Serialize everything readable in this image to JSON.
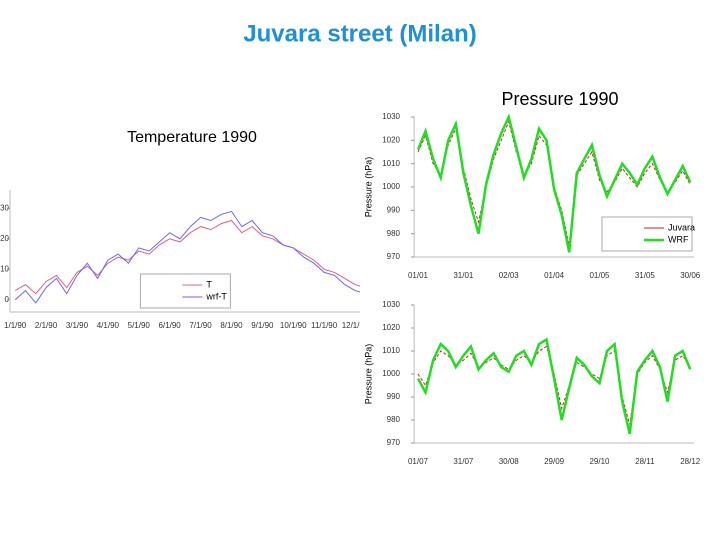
{
  "title": "Juvara street (Milan)",
  "chart_data": [
    {
      "type": "line",
      "title": "Temperature 1990",
      "legend": "lower center",
      "categories": [
        "1/1/90",
        null,
        null,
        "2/1/90",
        null,
        null,
        "3/1/90",
        null,
        null,
        "4/1/90",
        null,
        null,
        "5/1/90",
        null,
        null,
        "6/1/90",
        null,
        null,
        "7/1/90",
        null,
        null,
        "8/1/90",
        null,
        null,
        "9/1/90",
        null,
        null,
        "10/1/90",
        null,
        null,
        "11/1/90",
        null,
        null,
        "12/1/90",
        null,
        null
      ],
      "series": [
        {
          "name": "T",
          "color": "#e06080",
          "values": [
            3,
            5,
            2,
            6,
            8,
            4,
            9,
            11,
            8,
            12,
            14,
            13,
            16,
            15,
            18,
            20,
            19,
            22,
            24,
            23,
            25,
            26,
            22,
            24,
            21,
            20,
            18,
            17,
            15,
            13,
            10,
            9,
            7,
            5,
            4,
            2
          ]
        },
        {
          "name": "wrf-T",
          "color": "#6666ff",
          "values": [
            0,
            3,
            -1,
            4,
            7,
            2,
            8,
            12,
            7,
            13,
            15,
            12,
            17,
            16,
            19,
            22,
            20,
            24,
            27,
            26,
            28,
            29,
            24,
            26,
            22,
            21,
            18,
            17,
            14,
            12,
            9,
            8,
            5,
            3,
            2,
            0
          ]
        }
      ],
      "ylim": [
        -4,
        36
      ],
      "yticks": [
        0,
        10,
        20,
        30
      ]
    },
    {
      "type": "line",
      "title": "Pressure 1990",
      "ylabel": "Pressure (hPa)",
      "legend": "lower right",
      "categories": [
        "01/01",
        null,
        null,
        null,
        null,
        null,
        "31/01",
        null,
        null,
        null,
        null,
        null,
        "02/03",
        null,
        null,
        null,
        null,
        null,
        "01/04",
        null,
        null,
        null,
        null,
        null,
        "01/05",
        null,
        null,
        null,
        null,
        null,
        "31/05",
        null,
        null,
        null,
        null,
        null,
        "30/06"
      ],
      "series": [
        {
          "name": "Juvara",
          "color": "#cc2222",
          "values": [
            1015,
            1022,
            1010,
            1005,
            1018,
            1025,
            1008,
            995,
            985,
            1000,
            1012,
            1020,
            1028,
            1015,
            1005,
            1010,
            1022,
            1018,
            1000,
            990,
            975,
            1005,
            1010,
            1015,
            1003,
            998,
            1002,
            1008,
            1004,
            1000,
            1006,
            1010,
            1003,
            998,
            1002,
            1007,
            1001
          ]
        },
        {
          "name": "WRF",
          "color": "#22dd22",
          "values": [
            1016,
            1024,
            1012,
            1004,
            1020,
            1027,
            1006,
            992,
            980,
            1001,
            1014,
            1023,
            1030,
            1017,
            1004,
            1012,
            1025,
            1020,
            999,
            988,
            972,
            1006,
            1012,
            1018,
            1005,
            996,
            1003,
            1010,
            1006,
            1001,
            1008,
            1013,
            1004,
            997,
            1003,
            1009,
            1002
          ]
        }
      ],
      "ylim": [
        970,
        1030
      ],
      "yticks": [
        970,
        980,
        990,
        1000,
        1010,
        1020,
        1030
      ]
    },
    {
      "type": "line",
      "ylabel": "Pressure (hPa)",
      "categories": [
        "01/07",
        null,
        null,
        null,
        null,
        null,
        "31/07",
        null,
        null,
        null,
        null,
        null,
        "30/08",
        null,
        null,
        null,
        null,
        null,
        "29/09",
        null,
        null,
        null,
        null,
        null,
        "29/10",
        null,
        null,
        null,
        null,
        null,
        "28/11",
        null,
        null,
        null,
        null,
        null,
        "28/12"
      ],
      "series": [
        {
          "color": "#cc2222",
          "values": [
            1000,
            995,
            1005,
            1010,
            1008,
            1004,
            1006,
            1009,
            1003,
            1005,
            1007,
            1004,
            1002,
            1006,
            1008,
            1005,
            1010,
            1012,
            1000,
            985,
            995,
            1005,
            1003,
            1000,
            998,
            1008,
            1010,
            990,
            978,
            1000,
            1005,
            1008,
            1002,
            992,
            1006,
            1008,
            1003
          ]
        },
        {
          "color": "#22dd22",
          "values": [
            998,
            992,
            1006,
            1013,
            1010,
            1003,
            1008,
            1012,
            1002,
            1006,
            1009,
            1003,
            1001,
            1008,
            1010,
            1004,
            1013,
            1015,
            998,
            980,
            994,
            1007,
            1004,
            999,
            996,
            1010,
            1013,
            988,
            974,
            1001,
            1006,
            1010,
            1003,
            988,
            1008,
            1010,
            1002
          ]
        }
      ],
      "ylim": [
        970,
        1030
      ],
      "yticks": [
        970,
        980,
        990,
        1000,
        1010,
        1020,
        1030
      ]
    }
  ]
}
